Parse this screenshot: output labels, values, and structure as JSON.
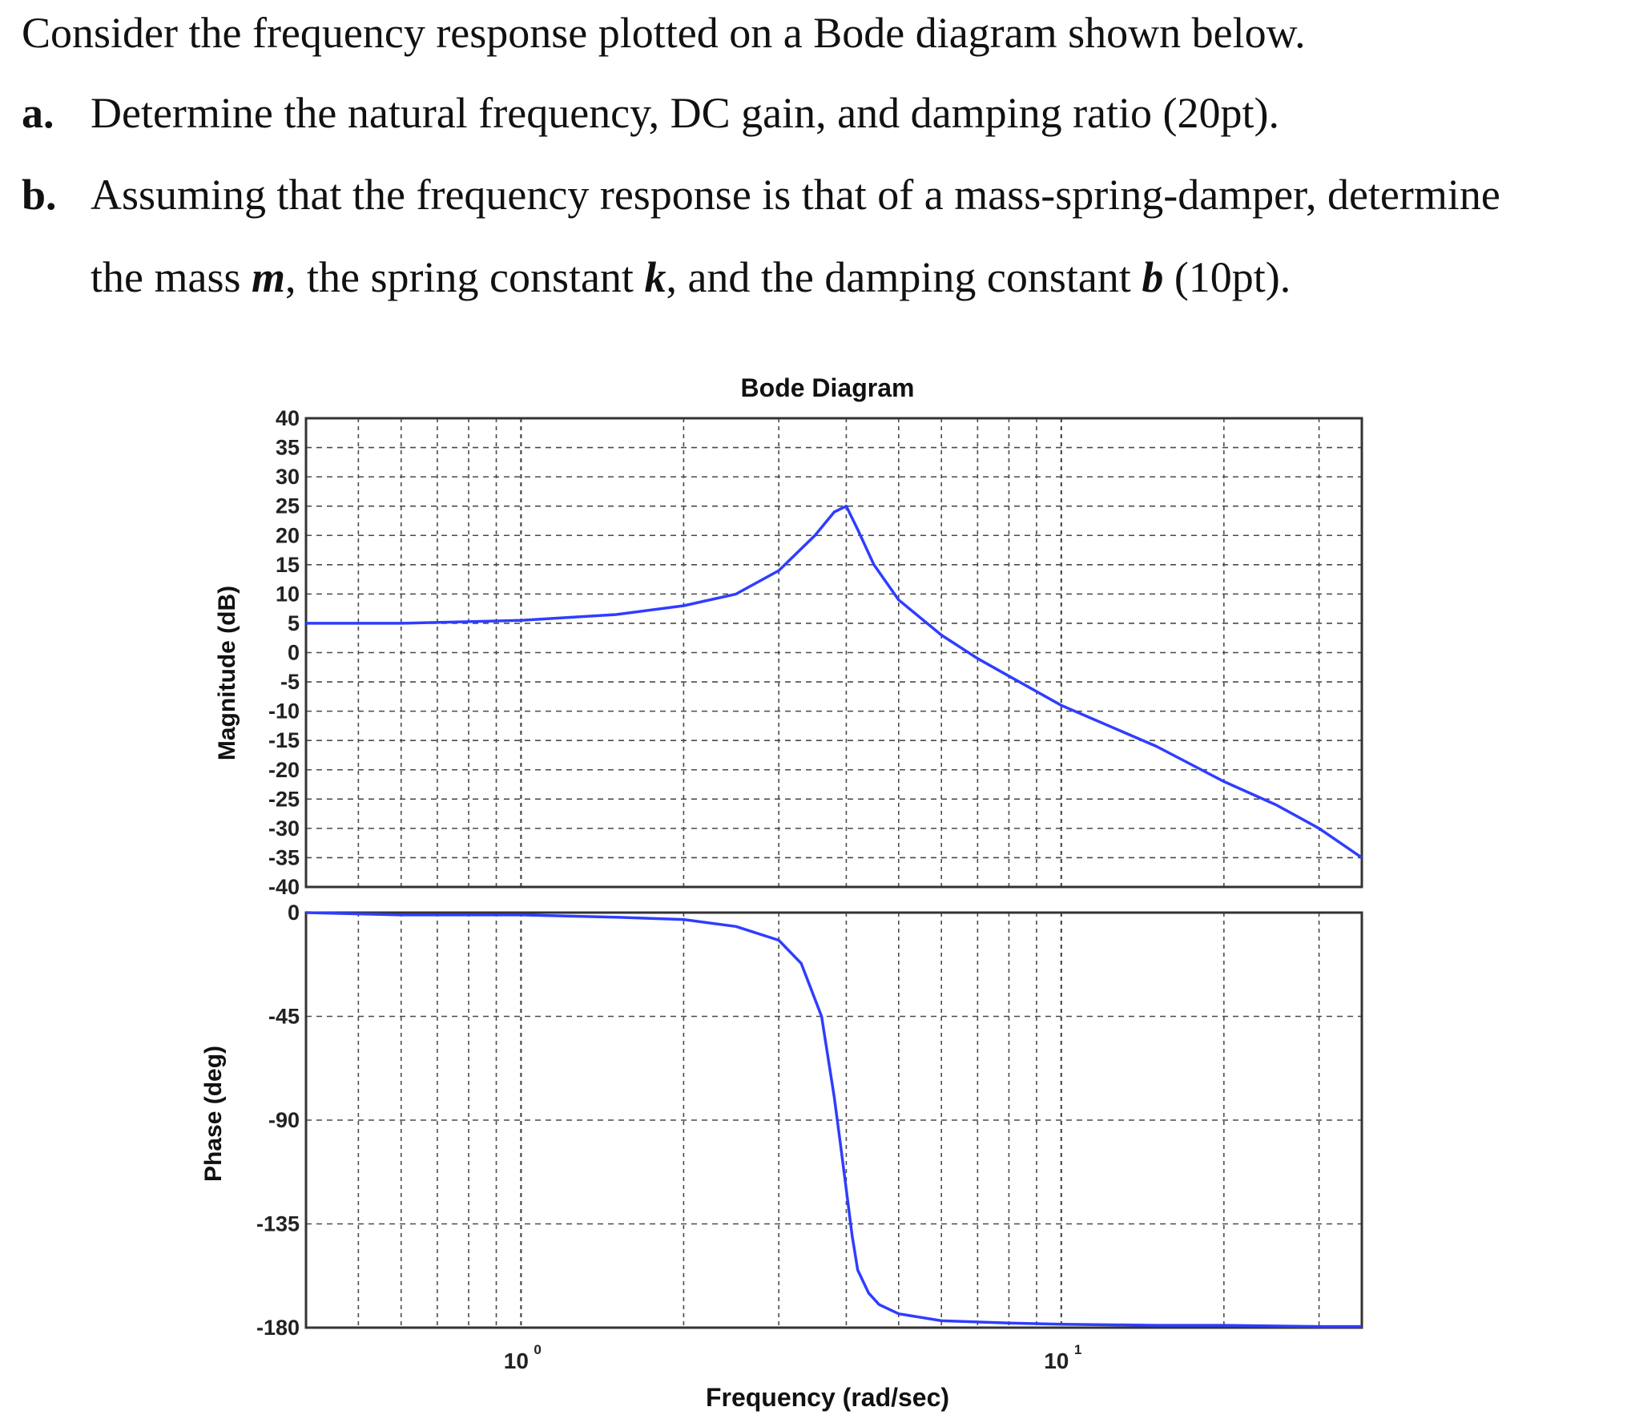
{
  "problem": {
    "intro": "Consider the frequency response plotted on a Bode diagram shown below.",
    "part_a": {
      "letter": "a.",
      "text": "Determine the natural frequency, DC gain, and damping ratio (20pt)."
    },
    "part_b": {
      "letter": "b.",
      "line1": "Assuming that the frequency response is that of a mass-spring-damper, determine",
      "line2_pre": "the mass ",
      "var_m": "m",
      "line2_mid1": ", the spring constant ",
      "var_k": "k",
      "line2_mid2": ", and the damping constant ",
      "var_b": "b",
      "line2_post": " (10pt)."
    }
  },
  "colors": {
    "curve": "#2f3dff",
    "grid": "#4a4a4a",
    "axes": "#333333",
    "text": "#111111"
  },
  "chart_data": {
    "type": "line",
    "title": "Bode Diagram",
    "xlabel": "Frequency (rad/sec)",
    "xscale": "log",
    "xlim": [
      0.4,
      36
    ],
    "x_ticks": [
      {
        "value": 1,
        "label": "10",
        "exp": "0"
      },
      {
        "value": 10,
        "label": "10",
        "exp": "1"
      }
    ],
    "grid": true,
    "panels": [
      {
        "name": "magnitude",
        "ylabel": "Magnitude (dB)",
        "ylim": [
          -40,
          40
        ],
        "yticks": [
          40,
          35,
          30,
          25,
          20,
          15,
          10,
          5,
          0,
          -5,
          -10,
          -15,
          -20,
          -25,
          -30,
          -35,
          -40
        ],
        "ytick_labels": [
          "40",
          "35",
          "30",
          "25",
          "20",
          "15",
          "10",
          "5",
          "0",
          "-5",
          "-10",
          "-15",
          "-20",
          "-25",
          "-30",
          "-35",
          "-40"
        ],
        "series": [
          {
            "x": [
              0.4,
              0.6,
              1.0,
              1.5,
              2.0,
              2.5,
              3.0,
              3.5,
              3.8,
              4.0,
              4.2,
              4.5,
              5.0,
              6.0,
              7.0,
              8.0,
              10.0,
              15.0,
              20.0,
              25.0,
              30.0,
              36.0
            ],
            "y": [
              5,
              5,
              5.5,
              6.5,
              8,
              10,
              14,
              20,
              24,
              25,
              21,
              15,
              9,
              3,
              -1,
              -4,
              -9,
              -16,
              -22,
              -26,
              -30,
              -35
            ]
          }
        ]
      },
      {
        "name": "phase",
        "ylabel": "Phase (deg)",
        "ylim": [
          -180,
          0
        ],
        "yticks": [
          0,
          -45,
          -90,
          -135,
          -180
        ],
        "ytick_labels": [
          "0",
          "-45",
          "-90",
          "-135",
          "-180"
        ],
        "series": [
          {
            "x": [
              0.4,
              0.6,
              1.0,
              1.5,
              2.0,
              2.5,
              3.0,
              3.3,
              3.6,
              3.8,
              3.9,
              4.0,
              4.1,
              4.2,
              4.4,
              4.6,
              5.0,
              6.0,
              8.0,
              10.0,
              15.0,
              20.0,
              30.0,
              36.0
            ],
            "y": [
              0,
              -1,
              -1,
              -2,
              -3,
              -6,
              -12,
              -22,
              -45,
              -80,
              -100,
              -120,
              -140,
              -155,
              -165,
              -170,
              -174,
              -177,
              -178,
              -178.5,
              -179,
              -179,
              -179.5,
              -179.5
            ]
          }
        ]
      }
    ]
  }
}
